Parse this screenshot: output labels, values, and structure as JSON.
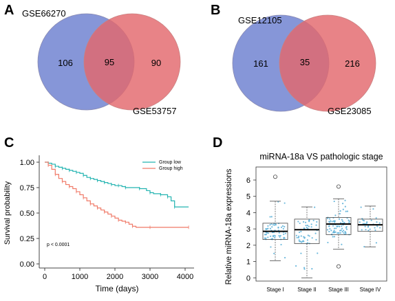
{
  "panels": {
    "A": {
      "letter": "A",
      "chart_data": {
        "type": "venn",
        "sets": [
          {
            "name": "GSE66270",
            "color": "#6b7fcf",
            "only": 106
          },
          {
            "name": "GSE53757",
            "color": "#e3686c",
            "only": 90
          }
        ],
        "intersection": 95
      }
    },
    "B": {
      "letter": "B",
      "chart_data": {
        "type": "venn",
        "sets": [
          {
            "name": "GSE12105",
            "color": "#6b7fcf",
            "only": 161
          },
          {
            "name": "GSE23085",
            "color": "#e3686c",
            "only": 216
          }
        ],
        "intersection": 35
      }
    },
    "C": {
      "letter": "C",
      "chart_data": {
        "type": "line",
        "xlabel": "Time (days)",
        "ylabel": "Survival probability",
        "xlim": [
          0,
          4100
        ],
        "ylim": [
          0,
          1.0
        ],
        "x_ticks": [
          "0",
          "1000",
          "2000",
          "3000",
          "4000"
        ],
        "y_ticks": [
          "0.00",
          "0.25",
          "0.50",
          "0.75",
          "1.00"
        ],
        "annotation": "p < 0.0001",
        "legend_position": "top-right",
        "series": [
          {
            "name": "Group low",
            "color": "#21b3b0",
            "x": [
              0,
              100,
              200,
              300,
              400,
              500,
              600,
              700,
              800,
              900,
              1000,
              1100,
              1200,
              1300,
              1400,
              1500,
              1600,
              1700,
              1800,
              1900,
              2000,
              2100,
              2200,
              2300,
              2500,
              2700,
              2900,
              3000,
              3100,
              3300,
              3400,
              3500,
              3600,
              3700,
              4100
            ],
            "y": [
              1.0,
              0.99,
              0.98,
              0.96,
              0.95,
              0.94,
              0.93,
              0.92,
              0.91,
              0.9,
              0.89,
              0.87,
              0.85,
              0.84,
              0.83,
              0.82,
              0.81,
              0.8,
              0.79,
              0.78,
              0.77,
              0.77,
              0.76,
              0.75,
              0.75,
              0.74,
              0.72,
              0.7,
              0.69,
              0.68,
              0.68,
              0.66,
              0.62,
              0.56,
              0.56
            ]
          },
          {
            "name": "Group high",
            "color": "#f07a68",
            "x": [
              0,
              100,
              200,
              300,
              400,
              500,
              600,
              700,
              800,
              900,
              1000,
              1100,
              1200,
              1300,
              1400,
              1500,
              1600,
              1700,
              1800,
              1900,
              2000,
              2100,
              2200,
              2300,
              2400,
              2500,
              2600,
              3000,
              3500,
              4100
            ],
            "y": [
              1.0,
              0.97,
              0.93,
              0.88,
              0.84,
              0.81,
              0.78,
              0.76,
              0.74,
              0.71,
              0.68,
              0.65,
              0.62,
              0.59,
              0.57,
              0.55,
              0.53,
              0.51,
              0.49,
              0.47,
              0.45,
              0.43,
              0.42,
              0.41,
              0.39,
              0.37,
              0.36,
              0.36,
              0.36,
              0.36
            ]
          }
        ]
      }
    },
    "D": {
      "letter": "D",
      "chart_data": {
        "type": "box",
        "title": "miRNA-18a VS pathologic stage",
        "ylabel": "Relative miRNA-18a expressions",
        "ylim": [
          -0.2,
          6.8
        ],
        "y_ticks": [
          "0",
          "1",
          "2",
          "3",
          "4",
          "5",
          "6"
        ],
        "categories": [
          "Stage I",
          "Stage II",
          "Stage III",
          "Stage IV"
        ],
        "point_color": "#5fb3d9",
        "boxes": [
          {
            "min": 1.05,
            "q1": 2.35,
            "median": 2.85,
            "q3": 3.35,
            "max": 4.7,
            "outliers": [
              6.2
            ]
          },
          {
            "min": 0.0,
            "q1": 2.1,
            "median": 2.95,
            "q3": 3.6,
            "max": 4.35,
            "outliers": []
          },
          {
            "min": 1.75,
            "q1": 2.65,
            "median": 3.3,
            "q3": 3.7,
            "max": 4.85,
            "outliers": [
              5.6,
              0.7
            ]
          },
          {
            "min": 1.9,
            "q1": 2.85,
            "median": 3.25,
            "q3": 3.6,
            "max": 4.4,
            "outliers": []
          }
        ]
      }
    }
  }
}
